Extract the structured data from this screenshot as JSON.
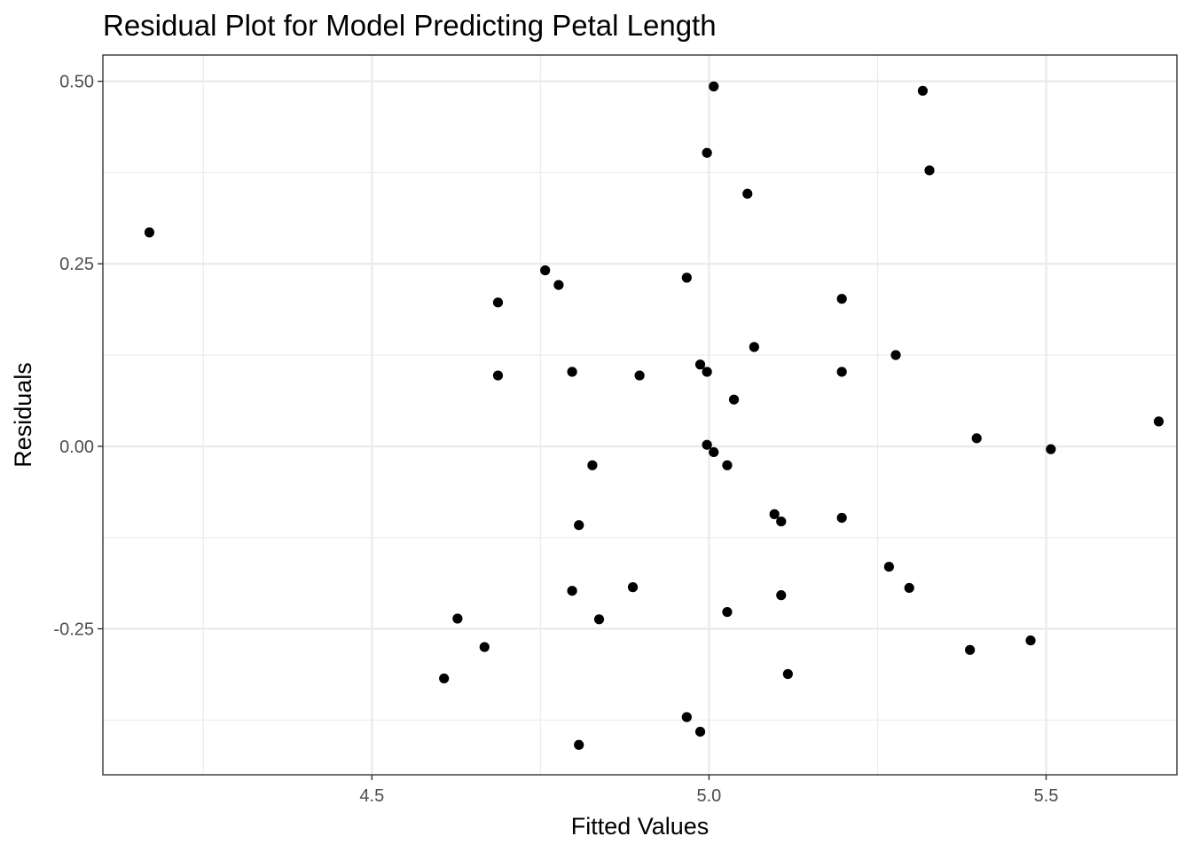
{
  "chart_data": {
    "type": "scatter",
    "title": "Residual Plot for Model Predicting Petal Length",
    "xlabel": "Fitted Values",
    "ylabel": "Residuals",
    "xlim": [
      4.101,
      5.694
    ],
    "ylim": [
      -0.45,
      0.536
    ],
    "x_ticks": [
      4.5,
      5.0,
      5.5
    ],
    "x_tick_labels": [
      "4.5",
      "5.0",
      "5.5"
    ],
    "y_ticks": [
      -0.25,
      0.0,
      0.25,
      0.5
    ],
    "y_tick_labels": [
      "-0.25",
      "0.00",
      "0.25",
      "0.50"
    ],
    "x_minor_ticks": [
      4.25,
      4.75,
      5.25
    ],
    "y_minor_ticks": [
      -0.375,
      -0.125,
      0.125,
      0.375
    ],
    "grid": true,
    "point_color": "#000000",
    "points": [
      {
        "x": 4.17,
        "y": 0.293
      },
      {
        "x": 4.757,
        "y": 0.241
      },
      {
        "x": 4.777,
        "y": 0.221
      },
      {
        "x": 4.687,
        "y": 0.197
      },
      {
        "x": 4.687,
        "y": 0.097
      },
      {
        "x": 4.797,
        "y": 0.102
      },
      {
        "x": 4.897,
        "y": 0.097
      },
      {
        "x": 4.967,
        "y": 0.231
      },
      {
        "x": 4.987,
        "y": 0.112
      },
      {
        "x": 4.997,
        "y": 0.102
      },
      {
        "x": 4.997,
        "y": 0.402
      },
      {
        "x": 5.007,
        "y": 0.493
      },
      {
        "x": 5.057,
        "y": 0.346
      },
      {
        "x": 5.067,
        "y": 0.136
      },
      {
        "x": 5.037,
        "y": 0.064
      },
      {
        "x": 4.997,
        "y": 0.002
      },
      {
        "x": 5.007,
        "y": -0.008
      },
      {
        "x": 5.027,
        "y": -0.026
      },
      {
        "x": 4.827,
        "y": -0.026
      },
      {
        "x": 4.807,
        "y": -0.108
      },
      {
        "x": 5.097,
        "y": -0.093
      },
      {
        "x": 5.107,
        "y": -0.103
      },
      {
        "x": 5.197,
        "y": -0.098
      },
      {
        "x": 5.197,
        "y": 0.202
      },
      {
        "x": 5.197,
        "y": 0.102
      },
      {
        "x": 5.277,
        "y": 0.125
      },
      {
        "x": 5.317,
        "y": 0.487
      },
      {
        "x": 5.327,
        "y": 0.378
      },
      {
        "x": 5.397,
        "y": 0.011
      },
      {
        "x": 5.507,
        "y": -0.004
      },
      {
        "x": 5.667,
        "y": 0.034
      },
      {
        "x": 4.797,
        "y": -0.198
      },
      {
        "x": 4.887,
        "y": -0.193
      },
      {
        "x": 4.837,
        "y": -0.237
      },
      {
        "x": 4.627,
        "y": -0.236
      },
      {
        "x": 4.667,
        "y": -0.275
      },
      {
        "x": 4.607,
        "y": -0.318
      },
      {
        "x": 5.027,
        "y": -0.227
      },
      {
        "x": 5.107,
        "y": -0.204
      },
      {
        "x": 5.267,
        "y": -0.165
      },
      {
        "x": 5.297,
        "y": -0.194
      },
      {
        "x": 5.117,
        "y": -0.312
      },
      {
        "x": 5.387,
        "y": -0.279
      },
      {
        "x": 5.477,
        "y": -0.266
      },
      {
        "x": 4.967,
        "y": -0.371
      },
      {
        "x": 4.987,
        "y": -0.391
      },
      {
        "x": 4.807,
        "y": -0.409
      }
    ]
  }
}
